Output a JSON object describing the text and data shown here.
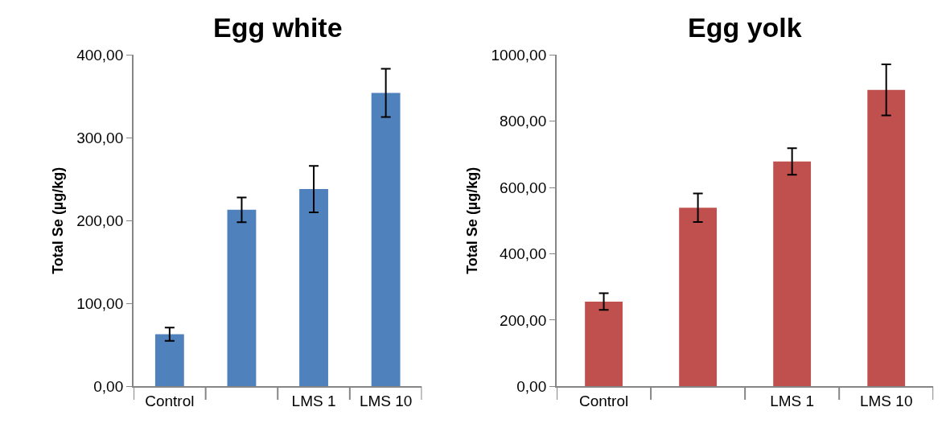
{
  "chart_data": [
    {
      "type": "bar",
      "title": "Egg white",
      "ylabel": "Total Se (µg/kg)",
      "categories": [
        "Control",
        null,
        "LMS 1",
        "LMS 10"
      ],
      "values": [
        63,
        213,
        238,
        354
      ],
      "errors": [
        8,
        15,
        28,
        29
      ],
      "color": "#4f81bd",
      "ylim": [
        0,
        400
      ],
      "yticks": [
        {
          "value": 0,
          "label": "0,00"
        },
        {
          "value": 100,
          "label": "100,00"
        },
        {
          "value": 200,
          "label": "200,00"
        },
        {
          "value": 300,
          "label": "300,00"
        },
        {
          "value": 400,
          "label": "400,00"
        }
      ]
    },
    {
      "type": "bar",
      "title": "Egg yolk",
      "ylabel": "Total Se (µg/kg)",
      "categories": [
        "Control",
        null,
        "LMS 1",
        "LMS 10"
      ],
      "values": [
        256,
        539,
        678,
        894
      ],
      "errors": [
        25,
        43,
        40,
        77
      ],
      "color": "#c0504d",
      "ylim": [
        0,
        1000
      ],
      "yticks": [
        {
          "value": 0,
          "label": "0,00"
        },
        {
          "value": 200,
          "label": "200,00"
        },
        {
          "value": 400,
          "label": "400,00"
        },
        {
          "value": 600,
          "label": "600,00"
        },
        {
          "value": 800,
          "label": "800,00"
        },
        {
          "value": 1000,
          "label": "1000,00"
        }
      ]
    }
  ]
}
